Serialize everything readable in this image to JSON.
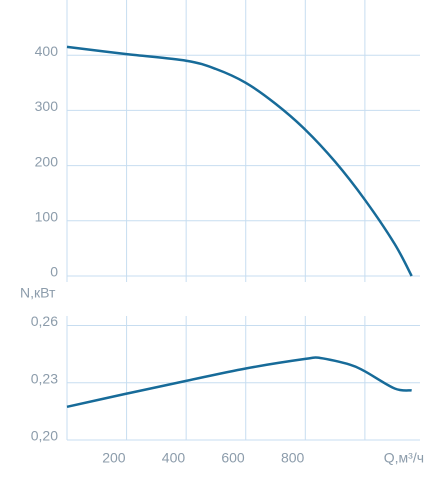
{
  "chart_data": [
    {
      "type": "line",
      "x": [
        0,
        200,
        400,
        500,
        600,
        700,
        800,
        900,
        1000,
        1100,
        1157
      ],
      "series": [
        {
          "color": "#176b99",
          "values": [
            415,
            402,
            390,
            375,
            350,
            312,
            265,
            207,
            138,
            58,
            0
          ]
        }
      ],
      "xlim": [
        0,
        1185
      ],
      "xticks": [
        200,
        400,
        600,
        800,
        1000
      ],
      "ylim": [
        0,
        500
      ],
      "yticks": [
        0,
        100,
        200,
        300,
        400
      ],
      "grid": true
    },
    {
      "type": "line",
      "ylabel": "N,кВт",
      "xlabel": "Q,м³/ч",
      "x": [
        0,
        200,
        400,
        600,
        800,
        850,
        950,
        1000,
        1100,
        1157
      ],
      "series": [
        {
          "color": "#176b99",
          "values": [
            0.2174,
            0.2243,
            0.231,
            0.2375,
            0.2425,
            0.243,
            0.2395,
            0.236,
            0.227,
            0.226
          ]
        }
      ],
      "xlim": [
        0,
        1185
      ],
      "xticks": [
        200,
        400,
        600,
        800,
        {
          "value": 1000,
          "label": null
        }
      ],
      "ylim": [
        0.2,
        0.265
      ],
      "yticks": [
        {
          "value": 0.2,
          "label": "0,20"
        },
        {
          "value": 0.23,
          "label": "0,23"
        },
        {
          "value": 0.26,
          "label": "0,26"
        }
      ],
      "grid": true
    }
  ]
}
